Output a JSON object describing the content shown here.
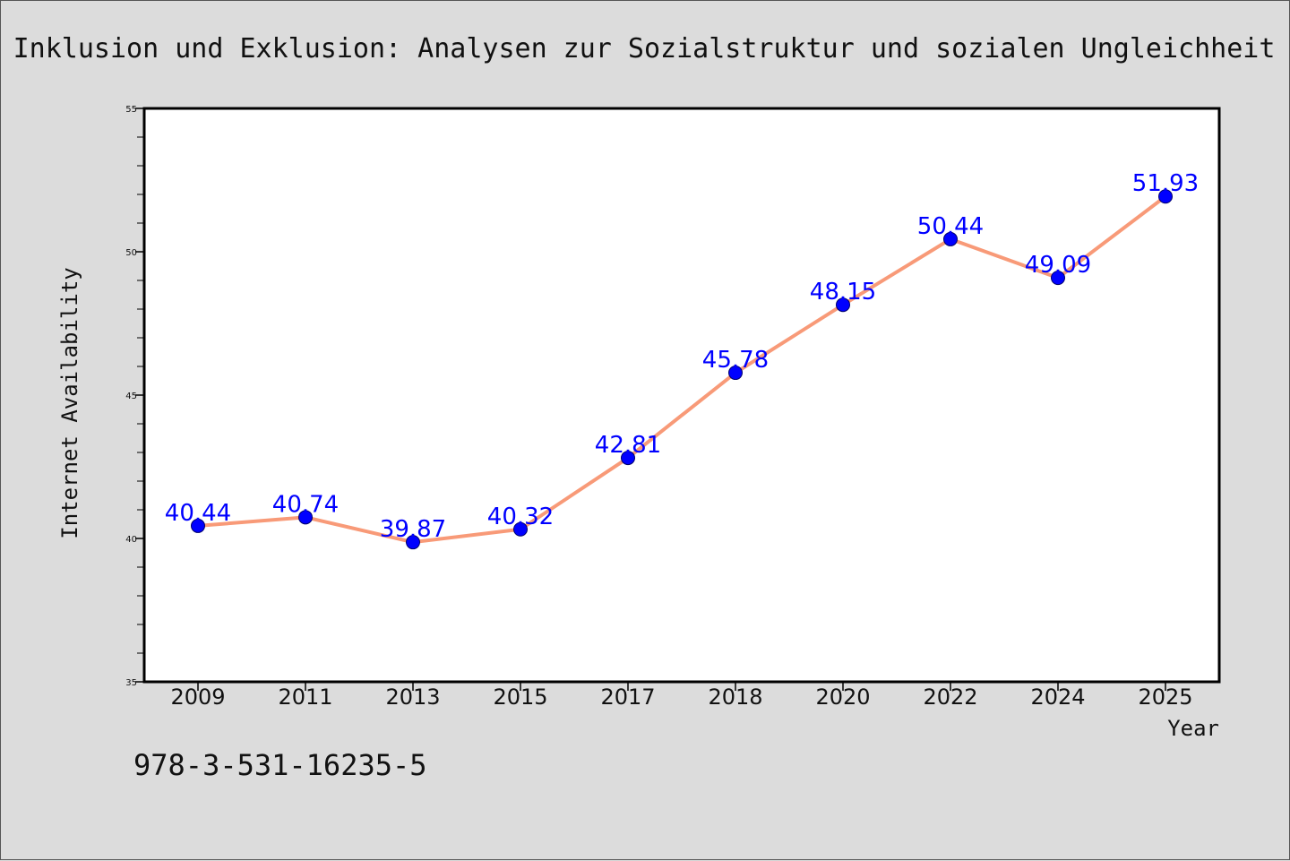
{
  "chart_data": {
    "type": "line",
    "title": "Inklusion und Exklusion: Analysen zur Sozialstruktur und sozialen Ungleichheit",
    "xlabel": "Year",
    "ylabel": "Internet Availability",
    "categories": [
      "2009",
      "2011",
      "2013",
      "2015",
      "2017",
      "2018",
      "2020",
      "2022",
      "2024",
      "2025"
    ],
    "series": [
      {
        "values": [
          40.44,
          40.74,
          39.87,
          40.32,
          42.81,
          45.78,
          48.15,
          50.44,
          49.09,
          51.93
        ],
        "value_labels": [
          "40.44",
          "40.74",
          "39.87",
          "40.32",
          "42.81",
          "45.78",
          "48.15",
          "50.44",
          "49.09",
          "51.93"
        ],
        "line_color": "#f89a78",
        "marker_color": "#0000ff"
      }
    ],
    "ylim": [
      35,
      55
    ],
    "yticks": [
      "35",
      "40",
      "45",
      "50",
      "55"
    ],
    "grid": false,
    "plot_background": "#ffffff",
    "figure_background": "#dcdcdc",
    "label_color": "#0000ff"
  },
  "annotation": {
    "isbn": "978-3-531-16235-5"
  }
}
